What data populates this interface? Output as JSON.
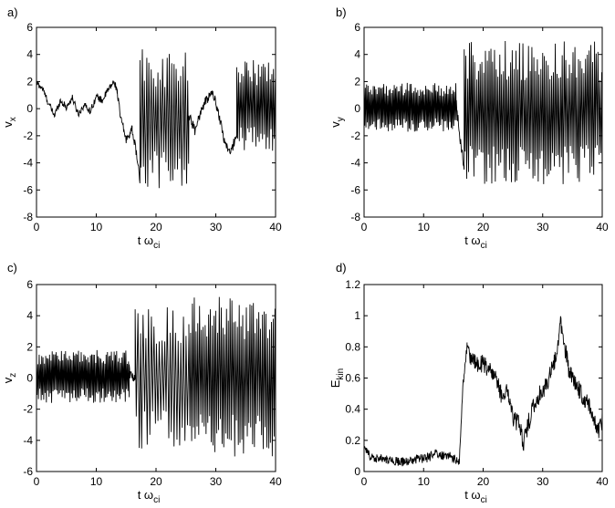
{
  "figure": {
    "background": "#ffffff",
    "line_color": "#000000"
  },
  "chart_data": [
    {
      "panel": "a)",
      "type": "line",
      "ylabel_main": "v",
      "ylabel_sub": "x",
      "xlabel_main": "t ω",
      "xlabel_sub": "ci",
      "xlim": [
        0,
        40
      ],
      "ylim": [
        -8,
        6
      ],
      "xticks": [
        0,
        10,
        20,
        30,
        40
      ],
      "yticks": [
        -8,
        -6,
        -4,
        -2,
        0,
        2,
        4,
        6
      ],
      "grid": false,
      "series": [
        {
          "segments": [
            {
              "x0": 0,
              "x1": 13.5,
              "kind": "slow",
              "points": [
                [
                  0,
                  1.9
                ],
                [
                  1,
                  1.5
                ],
                [
                  2,
                  0.4
                ],
                [
                  3,
                  -0.5
                ],
                [
                  4,
                  0.6
                ],
                [
                  5,
                  0.1
                ],
                [
                  6,
                  0.8
                ],
                [
                  7,
                  -0.4
                ],
                [
                  8,
                  0.3
                ],
                [
                  9,
                  -0.2
                ],
                [
                  10,
                  0.9
                ],
                [
                  11,
                  0.6
                ],
                [
                  12,
                  1.4
                ],
                [
                  13,
                  2.0
                ],
                [
                  13.5,
                  1.3
                ]
              ],
              "jitter": 0.25
            },
            {
              "x0": 13.5,
              "x1": 16,
              "kind": "slow",
              "points": [
                [
                  13.5,
                  1.3
                ],
                [
                  14,
                  -0.5
                ],
                [
                  15,
                  -2.3
                ],
                [
                  16,
                  -1.5
                ]
              ],
              "jitter": 0.3
            },
            {
              "x0": 16,
              "x1": 17.3,
              "kind": "slow",
              "points": [
                [
                  16,
                  -1.5
                ],
                [
                  16.8,
                  -3.5
                ],
                [
                  17.3,
                  -5.3
                ]
              ],
              "jitter": 0.3
            },
            {
              "x0": 17.3,
              "x1": 25.5,
              "kind": "osc",
              "center": -0.8,
              "amplitude": 5.2,
              "period": 0.38
            },
            {
              "x0": 25.5,
              "x1": 33.5,
              "kind": "slow",
              "points": [
                [
                  25.5,
                  -0.5
                ],
                [
                  26.5,
                  -1.6
                ],
                [
                  27.5,
                  -0.2
                ],
                [
                  28.5,
                  0.7
                ],
                [
                  29.5,
                  1.2
                ],
                [
                  30.5,
                  -0.4
                ],
                [
                  31.5,
                  -2.5
                ],
                [
                  32.5,
                  -3.3
                ],
                [
                  33.5,
                  -1.8
                ]
              ],
              "jitter": 0.35
            },
            {
              "x0": 33.5,
              "x1": 40,
              "kind": "osc",
              "center": 0.2,
              "amplitude": 3.4,
              "period": 0.28
            }
          ]
        }
      ]
    },
    {
      "panel": "b)",
      "type": "line",
      "ylabel_main": "v",
      "ylabel_sub": "y",
      "xlabel_main": "t ω",
      "xlabel_sub": "ci",
      "xlim": [
        0,
        40
      ],
      "ylim": [
        -8,
        6
      ],
      "xticks": [
        0,
        10,
        20,
        30,
        40
      ],
      "yticks": [
        -8,
        -6,
        -4,
        -2,
        0,
        2,
        4,
        6
      ],
      "grid": false,
      "series": [
        {
          "segments": [
            {
              "x0": 0,
              "x1": 15.5,
              "kind": "osc",
              "center": 0.1,
              "amplitude": 1.8,
              "period": 0.22
            },
            {
              "x0": 15.5,
              "x1": 16.8,
              "kind": "slow",
              "points": [
                [
                  15.5,
                  0.3
                ],
                [
                  16.2,
                  -2.5
                ],
                [
                  16.8,
                  -4.2
                ]
              ],
              "jitter": 0.4
            },
            {
              "x0": 16.8,
              "x1": 40,
              "kind": "osc",
              "center": -0.3,
              "amplitude": 5.3,
              "period": 0.3
            }
          ]
        }
      ]
    },
    {
      "panel": "c)",
      "type": "line",
      "ylabel_main": "v",
      "ylabel_sub": "z",
      "xlabel_main": "t ω",
      "xlabel_sub": "ci",
      "xlim": [
        0,
        40
      ],
      "ylim": [
        -6,
        6
      ],
      "xticks": [
        0,
        10,
        20,
        30,
        40
      ],
      "yticks": [
        -6,
        -4,
        -2,
        0,
        2,
        4,
        6
      ],
      "grid": false,
      "series": [
        {
          "segments": [
            {
              "x0": 0,
              "x1": 15.5,
              "kind": "osc",
              "center": 0.1,
              "amplitude": 1.7,
              "period": 0.22
            },
            {
              "x0": 15.5,
              "x1": 16.5,
              "kind": "slow",
              "points": [
                [
                  15.5,
                  0.5
                ],
                [
                  16.5,
                  -0.3
                ]
              ],
              "jitter": 0.4
            },
            {
              "x0": 16.5,
              "x1": 25.5,
              "kind": "osc",
              "center": 0.0,
              "amplitude": 4.6,
              "period": 0.45
            },
            {
              "x0": 25.5,
              "x1": 40,
              "kind": "osc",
              "center": 0.1,
              "amplitude": 5.2,
              "period": 0.3
            }
          ]
        }
      ]
    },
    {
      "panel": "d)",
      "type": "line",
      "ylabel_main": "E",
      "ylabel_sub": "kin",
      "xlabel_main": "t ω",
      "xlabel_sub": "ci",
      "xlim": [
        0,
        40
      ],
      "ylim": [
        0,
        1.2
      ],
      "xticks": [
        0,
        10,
        20,
        30,
        40
      ],
      "yticks": [
        0,
        0.2,
        0.4,
        0.6,
        0.8,
        1,
        1.2
      ],
      "grid": false,
      "series": [
        {
          "segments": [
            {
              "x0": 0,
              "x1": 16,
              "kind": "slow",
              "points": [
                [
                  0,
                  0.15
                ],
                [
                  1,
                  0.1
                ],
                [
                  3,
                  0.08
                ],
                [
                  5,
                  0.07
                ],
                [
                  7,
                  0.06
                ],
                [
                  9,
                  0.08
                ],
                [
                  11,
                  0.09
                ],
                [
                  12,
                  0.12
                ],
                [
                  13,
                  0.1
                ],
                [
                  14,
                  0.11
                ],
                [
                  15,
                  0.08
                ],
                [
                  16,
                  0.07
                ]
              ],
              "jitter": 0.03
            },
            {
              "x0": 16,
              "x1": 17.3,
              "kind": "slow",
              "points": [
                [
                  16,
                  0.07
                ],
                [
                  16.6,
                  0.55
                ],
                [
                  17.3,
                  0.8
                ]
              ],
              "jitter": 0.03
            },
            {
              "x0": 17.3,
              "x1": 40,
              "kind": "slow",
              "points": [
                [
                  17.3,
                  0.8
                ],
                [
                  18,
                  0.72
                ],
                [
                  19,
                  0.68
                ],
                [
                  20,
                  0.7
                ],
                [
                  21,
                  0.65
                ],
                [
                  22,
                  0.6
                ],
                [
                  23,
                  0.5
                ],
                [
                  24,
                  0.52
                ],
                [
                  25,
                  0.35
                ],
                [
                  26,
                  0.3
                ],
                [
                  26.8,
                  0.18
                ],
                [
                  27.5,
                  0.3
                ],
                [
                  28.5,
                  0.42
                ],
                [
                  29.5,
                  0.5
                ],
                [
                  30.5,
                  0.55
                ],
                [
                  31.5,
                  0.65
                ],
                [
                  32.5,
                  0.78
                ],
                [
                  33,
                  0.95
                ],
                [
                  33.5,
                  0.85
                ],
                [
                  34.5,
                  0.62
                ],
                [
                  35.5,
                  0.58
                ],
                [
                  36.5,
                  0.5
                ],
                [
                  37.5,
                  0.45
                ],
                [
                  38.5,
                  0.35
                ],
                [
                  39.2,
                  0.25
                ],
                [
                  40,
                  0.33
                ]
              ],
              "jitter": 0.06
            }
          ]
        }
      ]
    }
  ]
}
